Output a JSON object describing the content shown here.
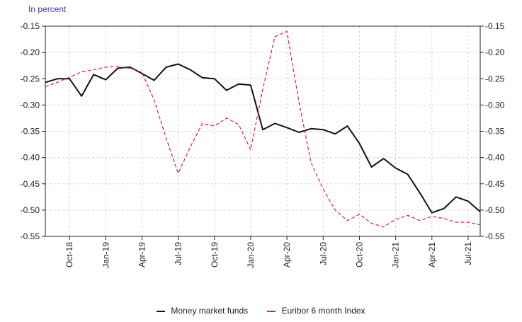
{
  "chart_data": {
    "type": "line",
    "unit_label": "In percent",
    "ylim": [
      -0.55,
      -0.15
    ],
    "y_ticks": [
      "-0.15",
      "-0.20",
      "-0.25",
      "-0.30",
      "-0.35",
      "-0.40",
      "-0.45",
      "-0.50",
      "-0.55"
    ],
    "y_tick_values": [
      -0.15,
      -0.2,
      -0.25,
      -0.3,
      -0.35,
      -0.4,
      -0.45,
      -0.5,
      -0.55
    ],
    "x_ticks": [
      {
        "label": "Oct-18",
        "index": 2
      },
      {
        "label": "Jan-19",
        "index": 5
      },
      {
        "label": "Apr-19",
        "index": 8
      },
      {
        "label": "Jul-19",
        "index": 11
      },
      {
        "label": "Oct-19",
        "index": 14
      },
      {
        "label": "Jan-20",
        "index": 17
      },
      {
        "label": "Apr-20",
        "index": 20
      },
      {
        "label": "Jul-20",
        "index": 23
      },
      {
        "label": "Oct-20",
        "index": 26
      },
      {
        "label": "Jan-21",
        "index": 29
      },
      {
        "label": "Apr-21",
        "index": 32
      },
      {
        "label": "Jul-21",
        "index": 35
      }
    ],
    "grid": true,
    "legend_position": "bottom",
    "series": [
      {
        "name": "Money market funds",
        "color": "#111111",
        "style": "solid",
        "values": [
          -0.257,
          -0.25,
          -0.25,
          -0.283,
          -0.242,
          -0.252,
          -0.23,
          -0.228,
          -0.24,
          -0.253,
          -0.228,
          -0.222,
          -0.233,
          -0.248,
          -0.25,
          -0.272,
          -0.26,
          -0.262,
          -0.347,
          -0.335,
          -0.343,
          -0.352,
          -0.345,
          -0.347,
          -0.355,
          -0.34,
          -0.373,
          -0.418,
          -0.402,
          -0.42,
          -0.432,
          -0.467,
          -0.505,
          -0.497,
          -0.475,
          -0.483,
          -0.503
        ]
      },
      {
        "name": "Euribor 6 month Index",
        "color": "#e8202a",
        "style": "dashed",
        "values": [
          -0.265,
          -0.257,
          -0.247,
          -0.237,
          -0.233,
          -0.228,
          -0.227,
          -0.23,
          -0.238,
          -0.29,
          -0.363,
          -0.43,
          -0.38,
          -0.335,
          -0.34,
          -0.325,
          -0.337,
          -0.385,
          -0.27,
          -0.17,
          -0.16,
          -0.295,
          -0.41,
          -0.46,
          -0.5,
          -0.52,
          -0.508,
          -0.525,
          -0.532,
          -0.518,
          -0.51,
          -0.52,
          -0.512,
          -0.516,
          -0.523,
          -0.523,
          -0.528
        ]
      }
    ]
  }
}
